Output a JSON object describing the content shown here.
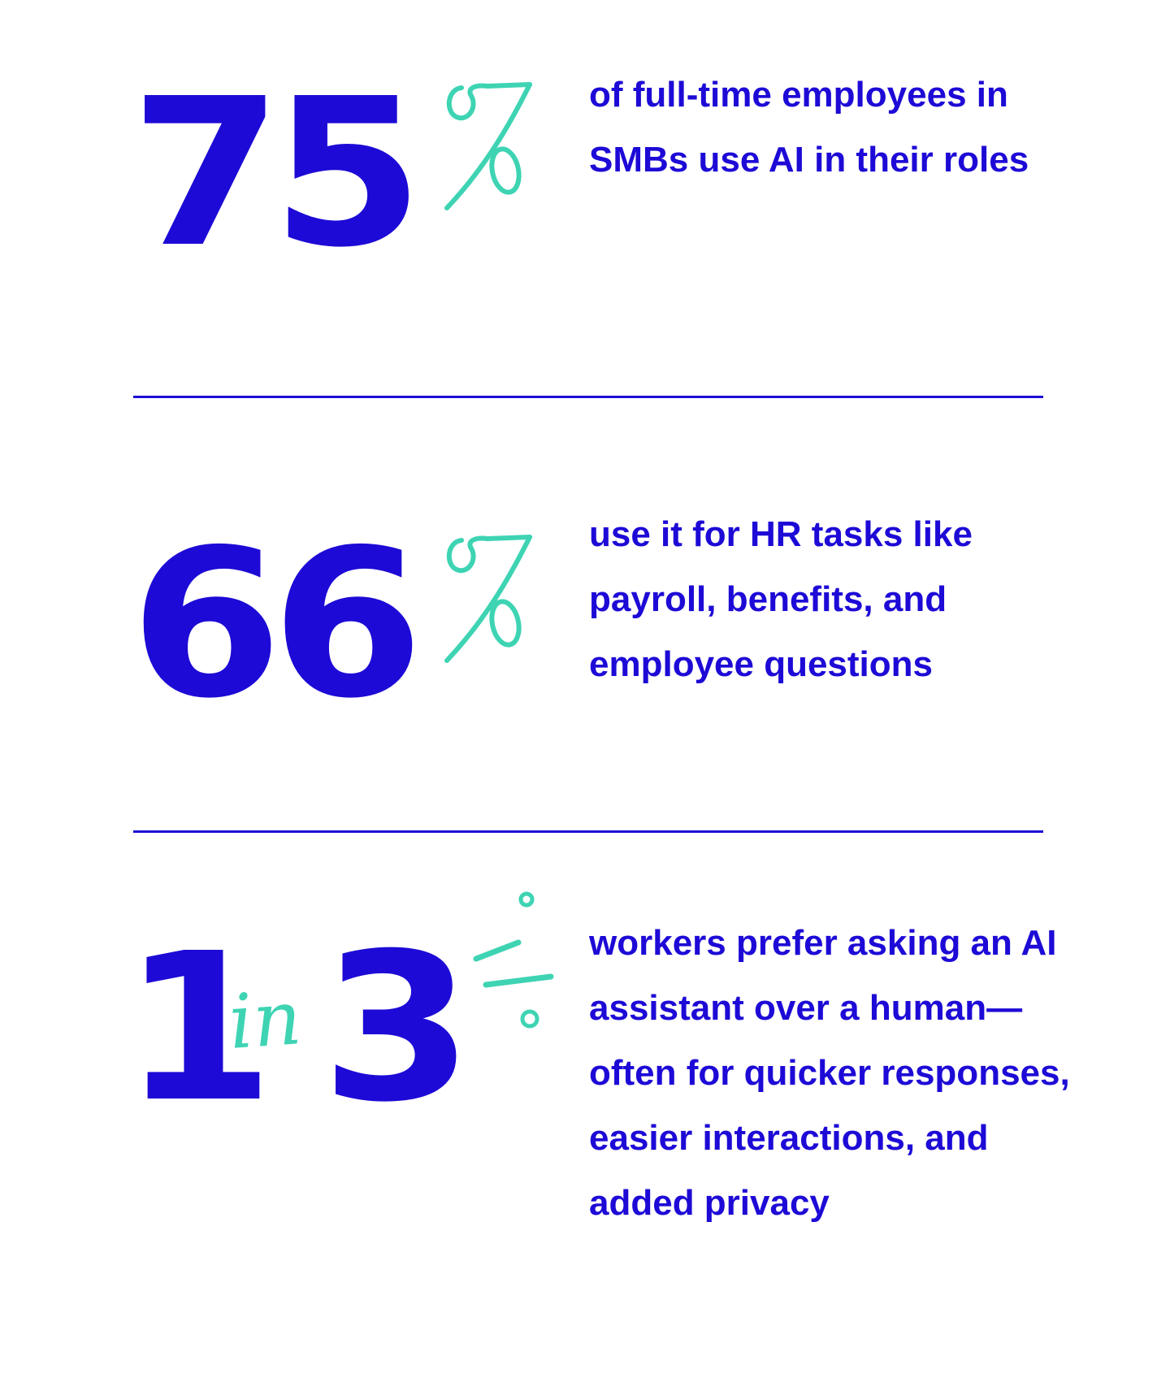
{
  "colors": {
    "primary": "#1d0ad6",
    "accent": "#3ed4b3",
    "background": "#ffffff"
  },
  "stats": [
    {
      "figure": "75",
      "figure_suffix_icon": "handwritten-percent-icon",
      "text": "of full-time employees in SMBs use AI in their roles"
    },
    {
      "figure": "66",
      "figure_suffix_icon": "handwritten-percent-icon",
      "text": "use it for HR tasks like payroll, benefits, and employee questions"
    },
    {
      "figure_left": "1",
      "figure_connector": "in",
      "figure_right": "3",
      "figure_suffix_icon": "handwritten-fraction-icon",
      "text": "workers prefer asking an AI assistant over a human—often for quicker responses, easier interactions, and added privacy"
    }
  ]
}
